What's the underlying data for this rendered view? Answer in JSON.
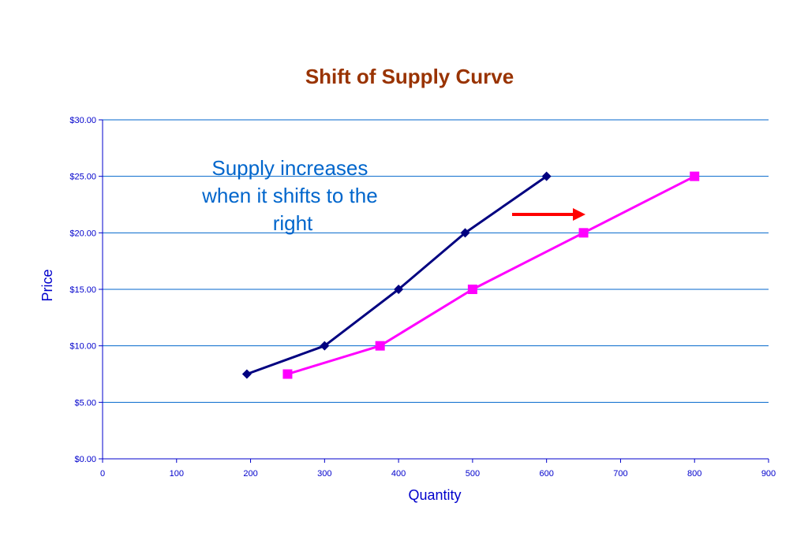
{
  "chart_data": {
    "type": "line",
    "title": "Shift of Supply Curve",
    "xlabel": "Quantity",
    "ylabel": "Price",
    "xlim": [
      0,
      900
    ],
    "ylim": [
      0,
      30
    ],
    "x_ticks": [
      0,
      100,
      200,
      300,
      400,
      500,
      600,
      700,
      800,
      900
    ],
    "x_tick_labels": [
      "0",
      "100",
      "200",
      "300",
      "400",
      "500",
      "600",
      "700",
      "800",
      "900"
    ],
    "y_ticks": [
      0,
      5,
      10,
      15,
      20,
      25,
      30
    ],
    "y_tick_labels": [
      "$0.00",
      "$5.00",
      "$10.00",
      "$15.00",
      "$20.00",
      "$25.00",
      "$30.00"
    ],
    "grid": "horizontal",
    "series": [
      {
        "color": "#000080",
        "marker": "diamond",
        "points": [
          [
            195,
            7.5
          ],
          [
            300,
            10
          ],
          [
            400,
            15
          ],
          [
            490,
            20
          ],
          [
            600,
            25
          ]
        ]
      },
      {
        "color": "#ff00ff",
        "marker": "square",
        "points": [
          [
            250,
            7.5
          ],
          [
            375,
            10
          ],
          [
            500,
            15
          ],
          [
            650,
            20
          ],
          [
            800,
            25
          ]
        ]
      }
    ],
    "annotations": [
      {
        "lines": [
          "Supply increases",
          "when it shifts to the",
          "right"
        ]
      }
    ],
    "arrow": {
      "direction": "right",
      "color": "#ff0000"
    },
    "colors": {
      "title": "#993300",
      "axis_text": "#0000cc",
      "grid": "#0066cc",
      "annotation": "#0066cc"
    }
  }
}
